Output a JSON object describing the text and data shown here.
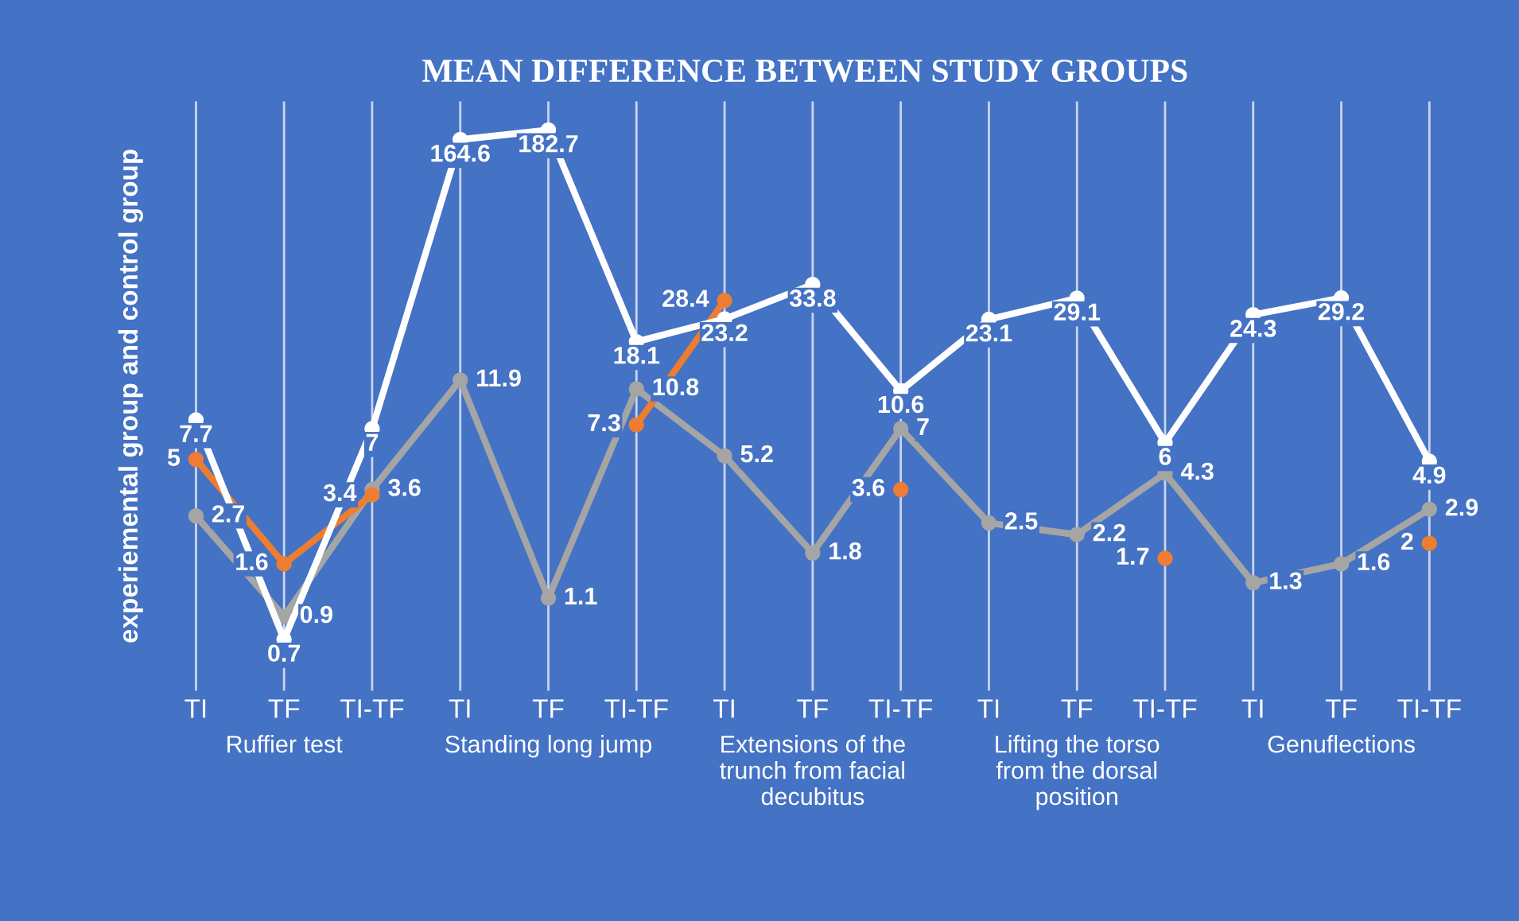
{
  "chart_data": {
    "type": "line",
    "title": "MEAN DIFFERENCE BETWEEN STUDY GROUPS",
    "ylabel": "experiemental group and control group",
    "categories": [
      "TI",
      "TF",
      "TI-TF",
      "TI",
      "TF",
      "TI-TF",
      "TI",
      "TF",
      "TI-TF",
      "TI",
      "TF",
      "TI-TF",
      "TI",
      "TF",
      "TI-TF"
    ],
    "annotations": [
      "Ruffier test",
      "Standing long jump",
      "Extensions of the trunch from facial decubitus",
      "Lifting the torso from the dorsal position",
      "Genuflections"
    ],
    "series": [
      {
        "color": "#a5a5a5",
        "values": [
          2.7,
          0.9,
          3.6,
          11.9,
          1.1,
          10.8,
          5.2,
          1.8,
          7,
          2.5,
          2.2,
          4.3,
          1.3,
          1.6,
          2.9
        ]
      },
      {
        "color": "#ed7d31",
        "values": [
          5,
          1.6,
          3.4,
          null,
          null,
          7.3,
          28.4,
          null,
          3.6,
          null,
          null,
          1.7,
          null,
          null,
          2
        ]
      },
      {
        "color": "#ffffff",
        "values": [
          7.7,
          0.7,
          7,
          164.6,
          182.7,
          18.1,
          23.2,
          33.8,
          10.6,
          23.1,
          29.1,
          6,
          24.3,
          29.2,
          4.9
        ]
      }
    ],
    "log": true,
    "ylim": [
      0.4,
      250
    ],
    "tick_labels": "x",
    "grid": "x",
    "data_labels": true,
    "marker": "circle",
    "line_style": "solid",
    "legend": false
  }
}
